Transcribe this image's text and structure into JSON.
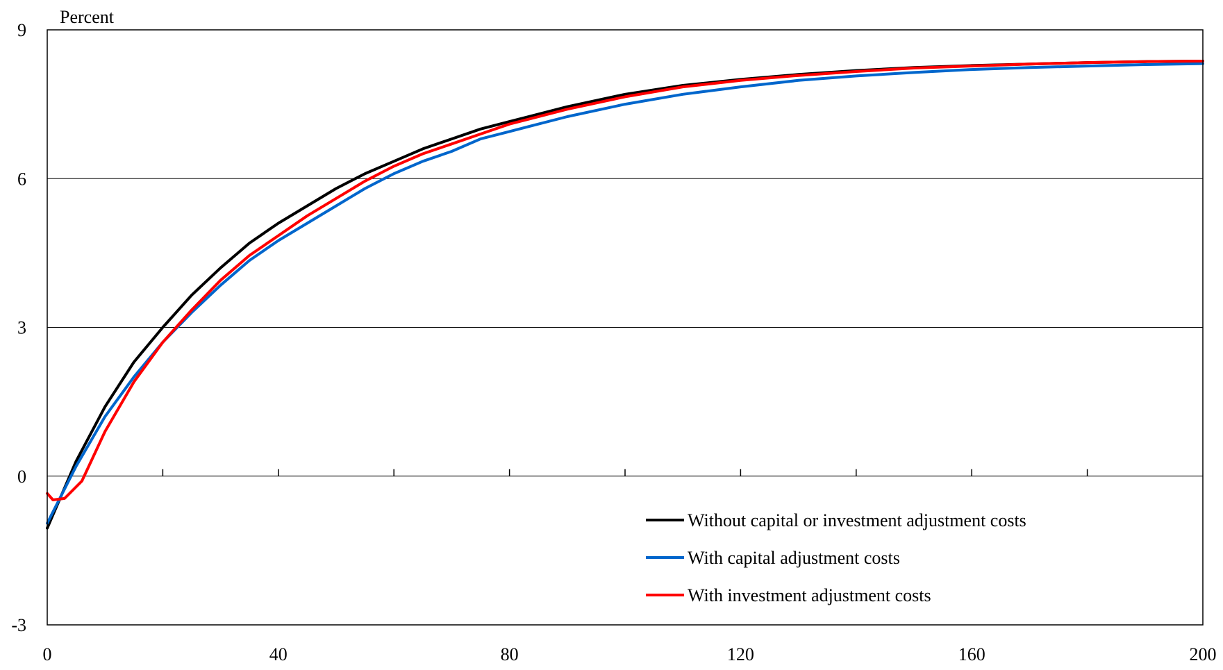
{
  "chart_data": {
    "type": "line",
    "title": "",
    "xlabel": "",
    "ylabel": "Percent",
    "xlim": [
      0,
      200
    ],
    "ylim": [
      -3,
      9
    ],
    "x_ticks": [
      0,
      40,
      80,
      120,
      160,
      200
    ],
    "x_minor_ticks": [
      20,
      60,
      100,
      140,
      180
    ],
    "y_ticks": [
      -3,
      0,
      3,
      6,
      9
    ],
    "grid": "horizontal",
    "legend_position": "bottom-right",
    "series": [
      {
        "name": "Without capital or investment adjustment costs",
        "color": "#000000",
        "points": [
          [
            0,
            -1.05
          ],
          [
            5,
            0.3
          ],
          [
            10,
            1.4
          ],
          [
            15,
            2.3
          ],
          [
            20,
            3.0
          ],
          [
            25,
            3.65
          ],
          [
            30,
            4.2
          ],
          [
            35,
            4.7
          ],
          [
            40,
            5.1
          ],
          [
            45,
            5.45
          ],
          [
            50,
            5.8
          ],
          [
            55,
            6.1
          ],
          [
            60,
            6.35
          ],
          [
            65,
            6.6
          ],
          [
            70,
            6.8
          ],
          [
            75,
            7.0
          ],
          [
            80,
            7.15
          ],
          [
            90,
            7.45
          ],
          [
            100,
            7.7
          ],
          [
            110,
            7.88
          ],
          [
            120,
            8.0
          ],
          [
            130,
            8.1
          ],
          [
            140,
            8.18
          ],
          [
            150,
            8.24
          ],
          [
            160,
            8.28
          ],
          [
            170,
            8.31
          ],
          [
            180,
            8.34
          ],
          [
            190,
            8.36
          ],
          [
            200,
            8.37
          ]
        ]
      },
      {
        "name": "With capital adjustment costs",
        "color": "#0066cc",
        "points": [
          [
            0,
            -0.95
          ],
          [
            5,
            0.2
          ],
          [
            10,
            1.2
          ],
          [
            15,
            2.0
          ],
          [
            20,
            2.7
          ],
          [
            25,
            3.3
          ],
          [
            30,
            3.85
          ],
          [
            35,
            4.35
          ],
          [
            40,
            4.75
          ],
          [
            45,
            5.1
          ],
          [
            50,
            5.45
          ],
          [
            55,
            5.8
          ],
          [
            60,
            6.1
          ],
          [
            65,
            6.35
          ],
          [
            70,
            6.55
          ],
          [
            75,
            6.8
          ],
          [
            80,
            6.95
          ],
          [
            90,
            7.25
          ],
          [
            100,
            7.5
          ],
          [
            110,
            7.7
          ],
          [
            120,
            7.85
          ],
          [
            130,
            7.98
          ],
          [
            140,
            8.07
          ],
          [
            150,
            8.14
          ],
          [
            160,
            8.2
          ],
          [
            170,
            8.24
          ],
          [
            180,
            8.27
          ],
          [
            190,
            8.3
          ],
          [
            200,
            8.32
          ]
        ]
      },
      {
        "name": "With investment adjustment costs",
        "color": "#ff0000",
        "points": [
          [
            0,
            -0.35
          ],
          [
            1,
            -0.48
          ],
          [
            3,
            -0.45
          ],
          [
            6,
            -0.1
          ],
          [
            10,
            0.9
          ],
          [
            15,
            1.9
          ],
          [
            20,
            2.7
          ],
          [
            25,
            3.35
          ],
          [
            30,
            3.95
          ],
          [
            35,
            4.45
          ],
          [
            40,
            4.85
          ],
          [
            45,
            5.25
          ],
          [
            50,
            5.6
          ],
          [
            55,
            5.95
          ],
          [
            60,
            6.25
          ],
          [
            65,
            6.5
          ],
          [
            70,
            6.7
          ],
          [
            75,
            6.9
          ],
          [
            80,
            7.1
          ],
          [
            90,
            7.4
          ],
          [
            100,
            7.65
          ],
          [
            110,
            7.85
          ],
          [
            120,
            7.98
          ],
          [
            130,
            8.08
          ],
          [
            140,
            8.16
          ],
          [
            150,
            8.23
          ],
          [
            160,
            8.27
          ],
          [
            170,
            8.31
          ],
          [
            180,
            8.34
          ],
          [
            190,
            8.36
          ],
          [
            200,
            8.37
          ]
        ]
      }
    ]
  }
}
